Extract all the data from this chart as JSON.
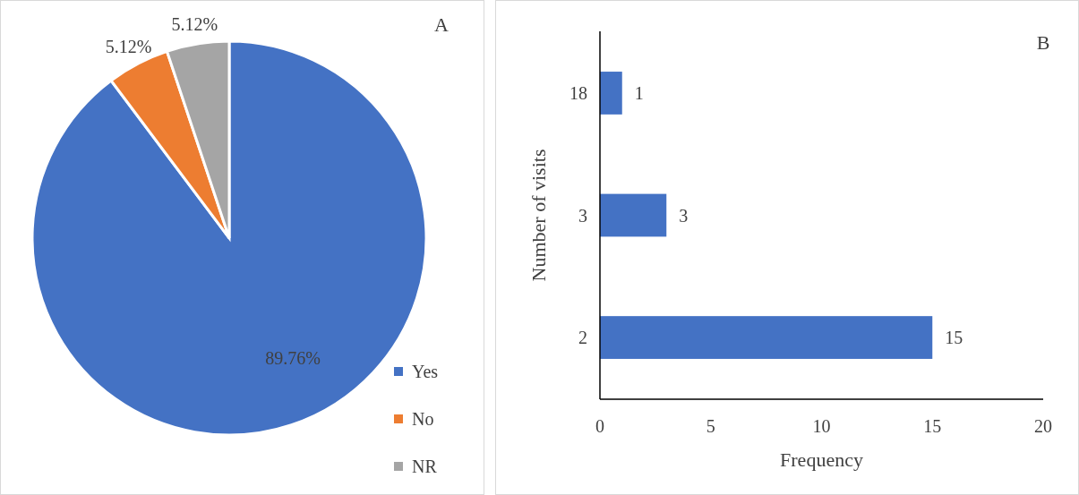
{
  "chart_data": [
    {
      "type": "pie",
      "title": "A",
      "categories": [
        "Yes",
        "No",
        "NR"
      ],
      "values": [
        89.76,
        5.12,
        5.12
      ],
      "colors": [
        "#4472c4",
        "#ed7d31",
        "#a5a5a5"
      ],
      "value_labels": [
        "89.76%",
        "5.12%",
        "5.12%"
      ],
      "legend": "bottom right"
    },
    {
      "type": "bar",
      "orientation": "horizontal",
      "title": "B",
      "categories": [
        "18",
        "3",
        "2"
      ],
      "values": [
        1,
        3,
        15
      ],
      "color": "#4472c4",
      "xlim": [
        0,
        20
      ],
      "xticks": [
        0,
        5,
        10,
        15,
        20
      ],
      "xlabel": "Frequency",
      "ylabel": "Number of visits",
      "data_labels": true,
      "grid": false
    }
  ]
}
